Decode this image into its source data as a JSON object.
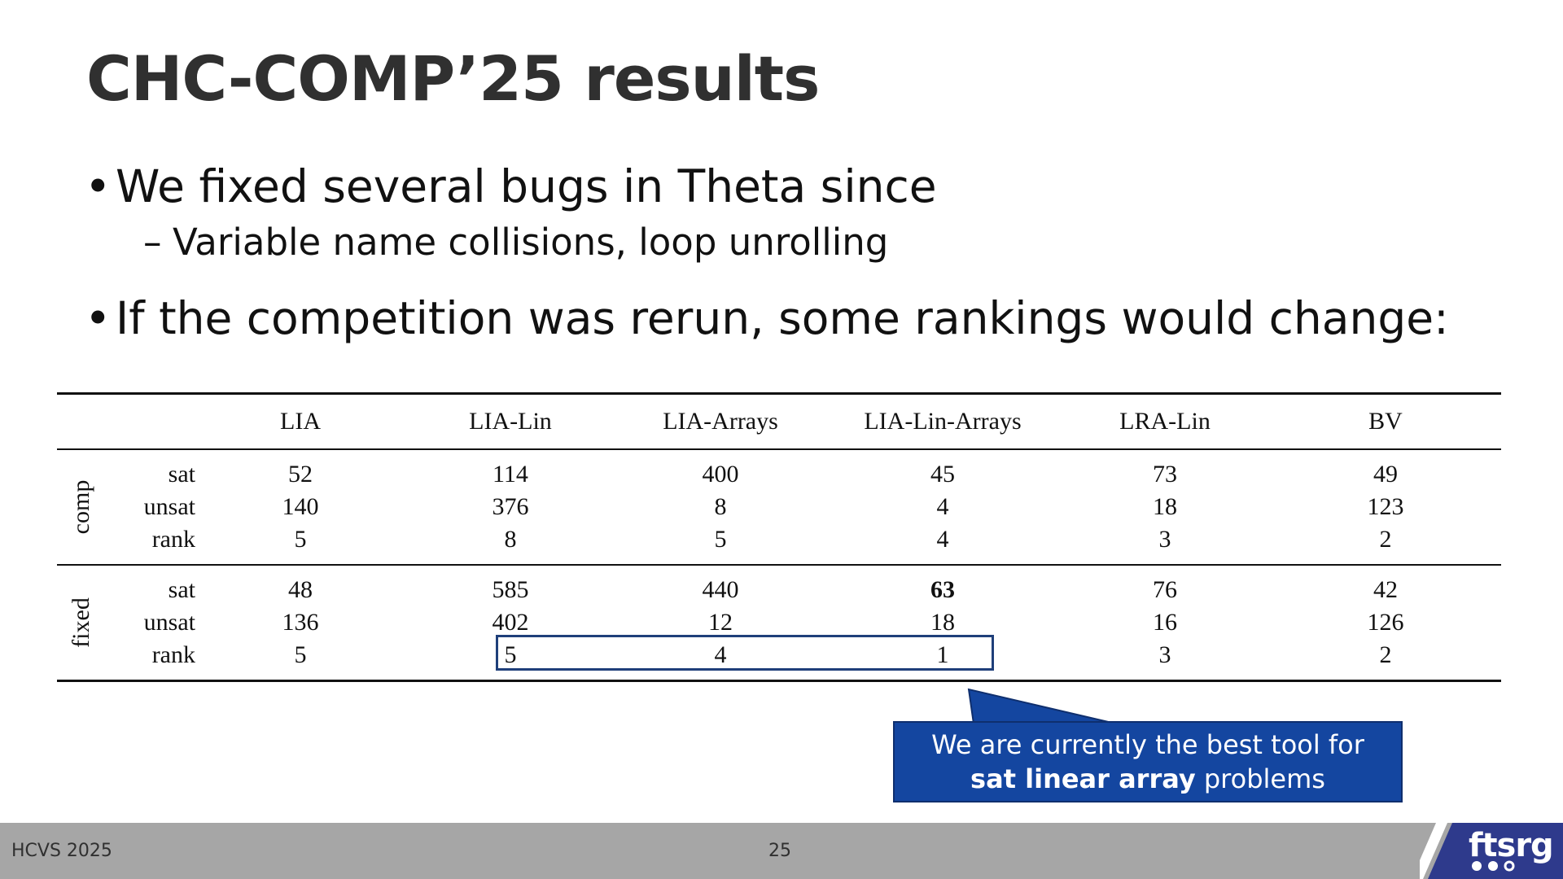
{
  "slide": {
    "title": "CHC-COMP’25 results",
    "bullets": [
      {
        "level": 1,
        "text": "We fixed several bugs in Theta since"
      },
      {
        "level": 2,
        "text": "Variable name collisions, loop unrolling"
      },
      {
        "level": 1,
        "text": "If the competition was rerun, some rankings would change:"
      }
    ],
    "bullet_marker": "•",
    "sub_marker": "–"
  },
  "table": {
    "columns": [
      "LIA",
      "LIA-Lin",
      "LIA-Arrays",
      "LIA-Lin-Arrays",
      "LRA-Lin",
      "BV"
    ],
    "groups": [
      {
        "label": "comp",
        "rows": [
          {
            "label": "sat",
            "values": [
              "52",
              "114",
              "400",
              "45",
              "73",
              "49"
            ]
          },
          {
            "label": "unsat",
            "values": [
              "140",
              "376",
              "8",
              "4",
              "18",
              "123"
            ]
          },
          {
            "label": "rank",
            "values": [
              "5",
              "8",
              "5",
              "4",
              "3",
              "2"
            ]
          }
        ]
      },
      {
        "label": "fixed",
        "rows": [
          {
            "label": "sat",
            "values": [
              "48",
              "585",
              "440",
              "63",
              "76",
              "42"
            ]
          },
          {
            "label": "unsat",
            "values": [
              "136",
              "402",
              "12",
              "18",
              "16",
              "126"
            ]
          },
          {
            "label": "rank",
            "values": [
              "5",
              "5",
              "4",
              "1",
              "3",
              "2"
            ]
          }
        ]
      }
    ]
  },
  "callout": {
    "line1": "We are currently the best tool for",
    "bold": "sat linear array",
    "rest": " problems",
    "color": "#1446a0"
  },
  "footer": {
    "left": "HCVS 2025",
    "page": "25",
    "logo": "ftsrg",
    "bar_color": "#a6a6a6",
    "logo_color": "#2e3a8c"
  }
}
